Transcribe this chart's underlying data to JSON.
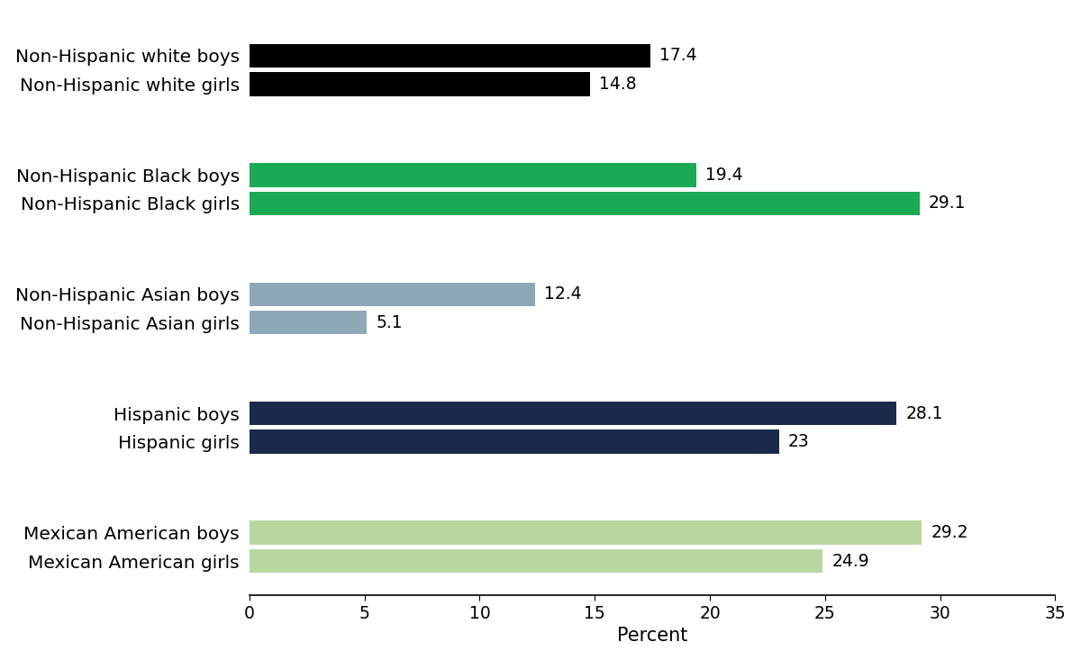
{
  "categories": [
    "Non-Hispanic white boys",
    "Non-Hispanic white girls",
    "Non-Hispanic Black boys",
    "Non-Hispanic Black girls",
    "Non-Hispanic Asian boys",
    "Non-Hispanic Asian girls",
    "Hispanic boys",
    "Hispanic girls",
    "Mexican American boys",
    "Mexican American girls"
  ],
  "values": [
    17.4,
    14.8,
    19.4,
    29.1,
    12.4,
    5.1,
    28.1,
    23.0,
    29.2,
    24.9
  ],
  "colors": [
    "#000000",
    "#000000",
    "#1aaa55",
    "#1aaa55",
    "#8fa8b8",
    "#8fa8b8",
    "#1a2a4a",
    "#1a2a4a",
    "#b8d8a0",
    "#b8d8a0"
  ],
  "bar_height": 0.38,
  "xlabel": "Percent",
  "xlim": [
    0,
    35
  ],
  "xticks": [
    0,
    5,
    10,
    15,
    20,
    25,
    30,
    35
  ],
  "background_color": "#ffffff",
  "label_fontsize": 14.5,
  "tick_fontsize": 13.5,
  "xlabel_fontsize": 15,
  "value_fontsize": 13.5,
  "y_positions": [
    9.6,
    9.15,
    7.7,
    7.25,
    5.8,
    5.35,
    3.9,
    3.45,
    2.0,
    1.55
  ]
}
